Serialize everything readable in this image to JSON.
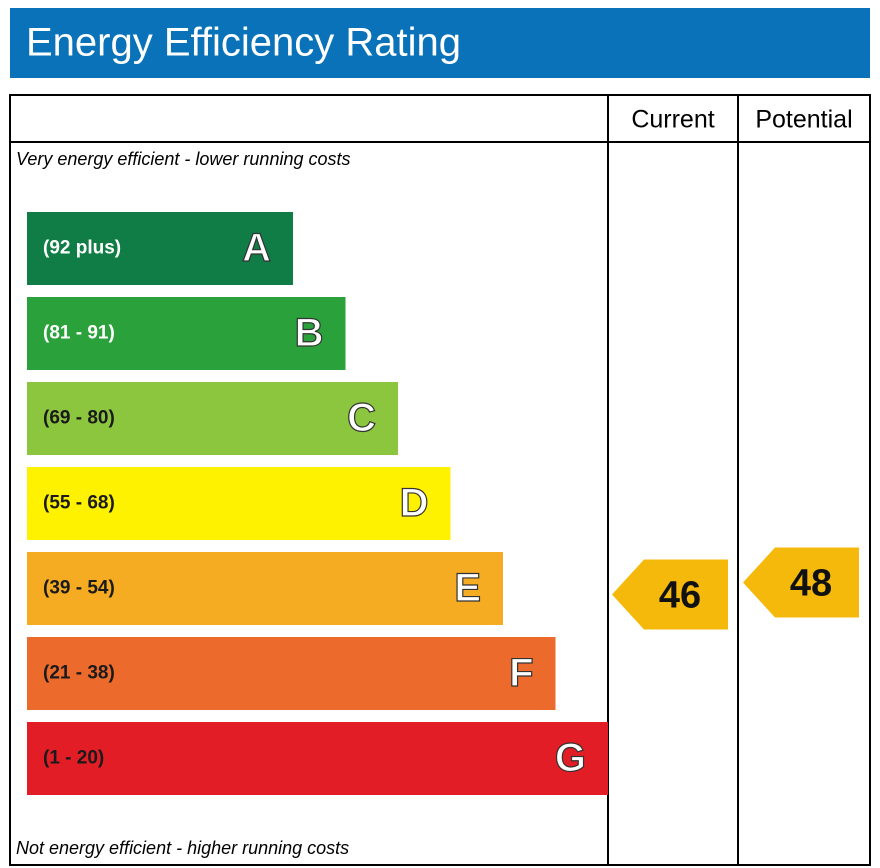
{
  "chart_data": {
    "type": "epc",
    "title": "Energy Efficiency Rating",
    "columns": [
      "Current",
      "Potential"
    ],
    "top_note": "Very energy efficient - lower running costs",
    "bottom_note": "Not energy efficient - higher running costs",
    "bands": [
      {
        "range": "(92 plus)",
        "letter": "A",
        "color": "#0f7d45",
        "label_color": "#ffffff"
      },
      {
        "range": "(81 - 91)",
        "letter": "B",
        "color": "#2aa13a",
        "label_color": "#ffffff"
      },
      {
        "range": "(69 - 80)",
        "letter": "C",
        "color": "#8cc63f",
        "label_color": "#1a1a1a"
      },
      {
        "range": "(55 - 68)",
        "letter": "D",
        "color": "#fff200",
        "label_color": "#1a1a1a"
      },
      {
        "range": "(39 - 54)",
        "letter": "E",
        "color": "#f6ac22",
        "label_color": "#1a1a1a"
      },
      {
        "range": "(21 - 38)",
        "letter": "F",
        "color": "#ec6b2c",
        "label_color": "#1a1a1a"
      },
      {
        "range": "(1 - 20)",
        "letter": "G",
        "color": "#e31d25",
        "label_color": "#1a1a1a"
      }
    ],
    "ratings": [
      {
        "value": 46,
        "color": "#f5b90c"
      },
      {
        "value": 48,
        "color": "#f5b90c"
      }
    ]
  }
}
